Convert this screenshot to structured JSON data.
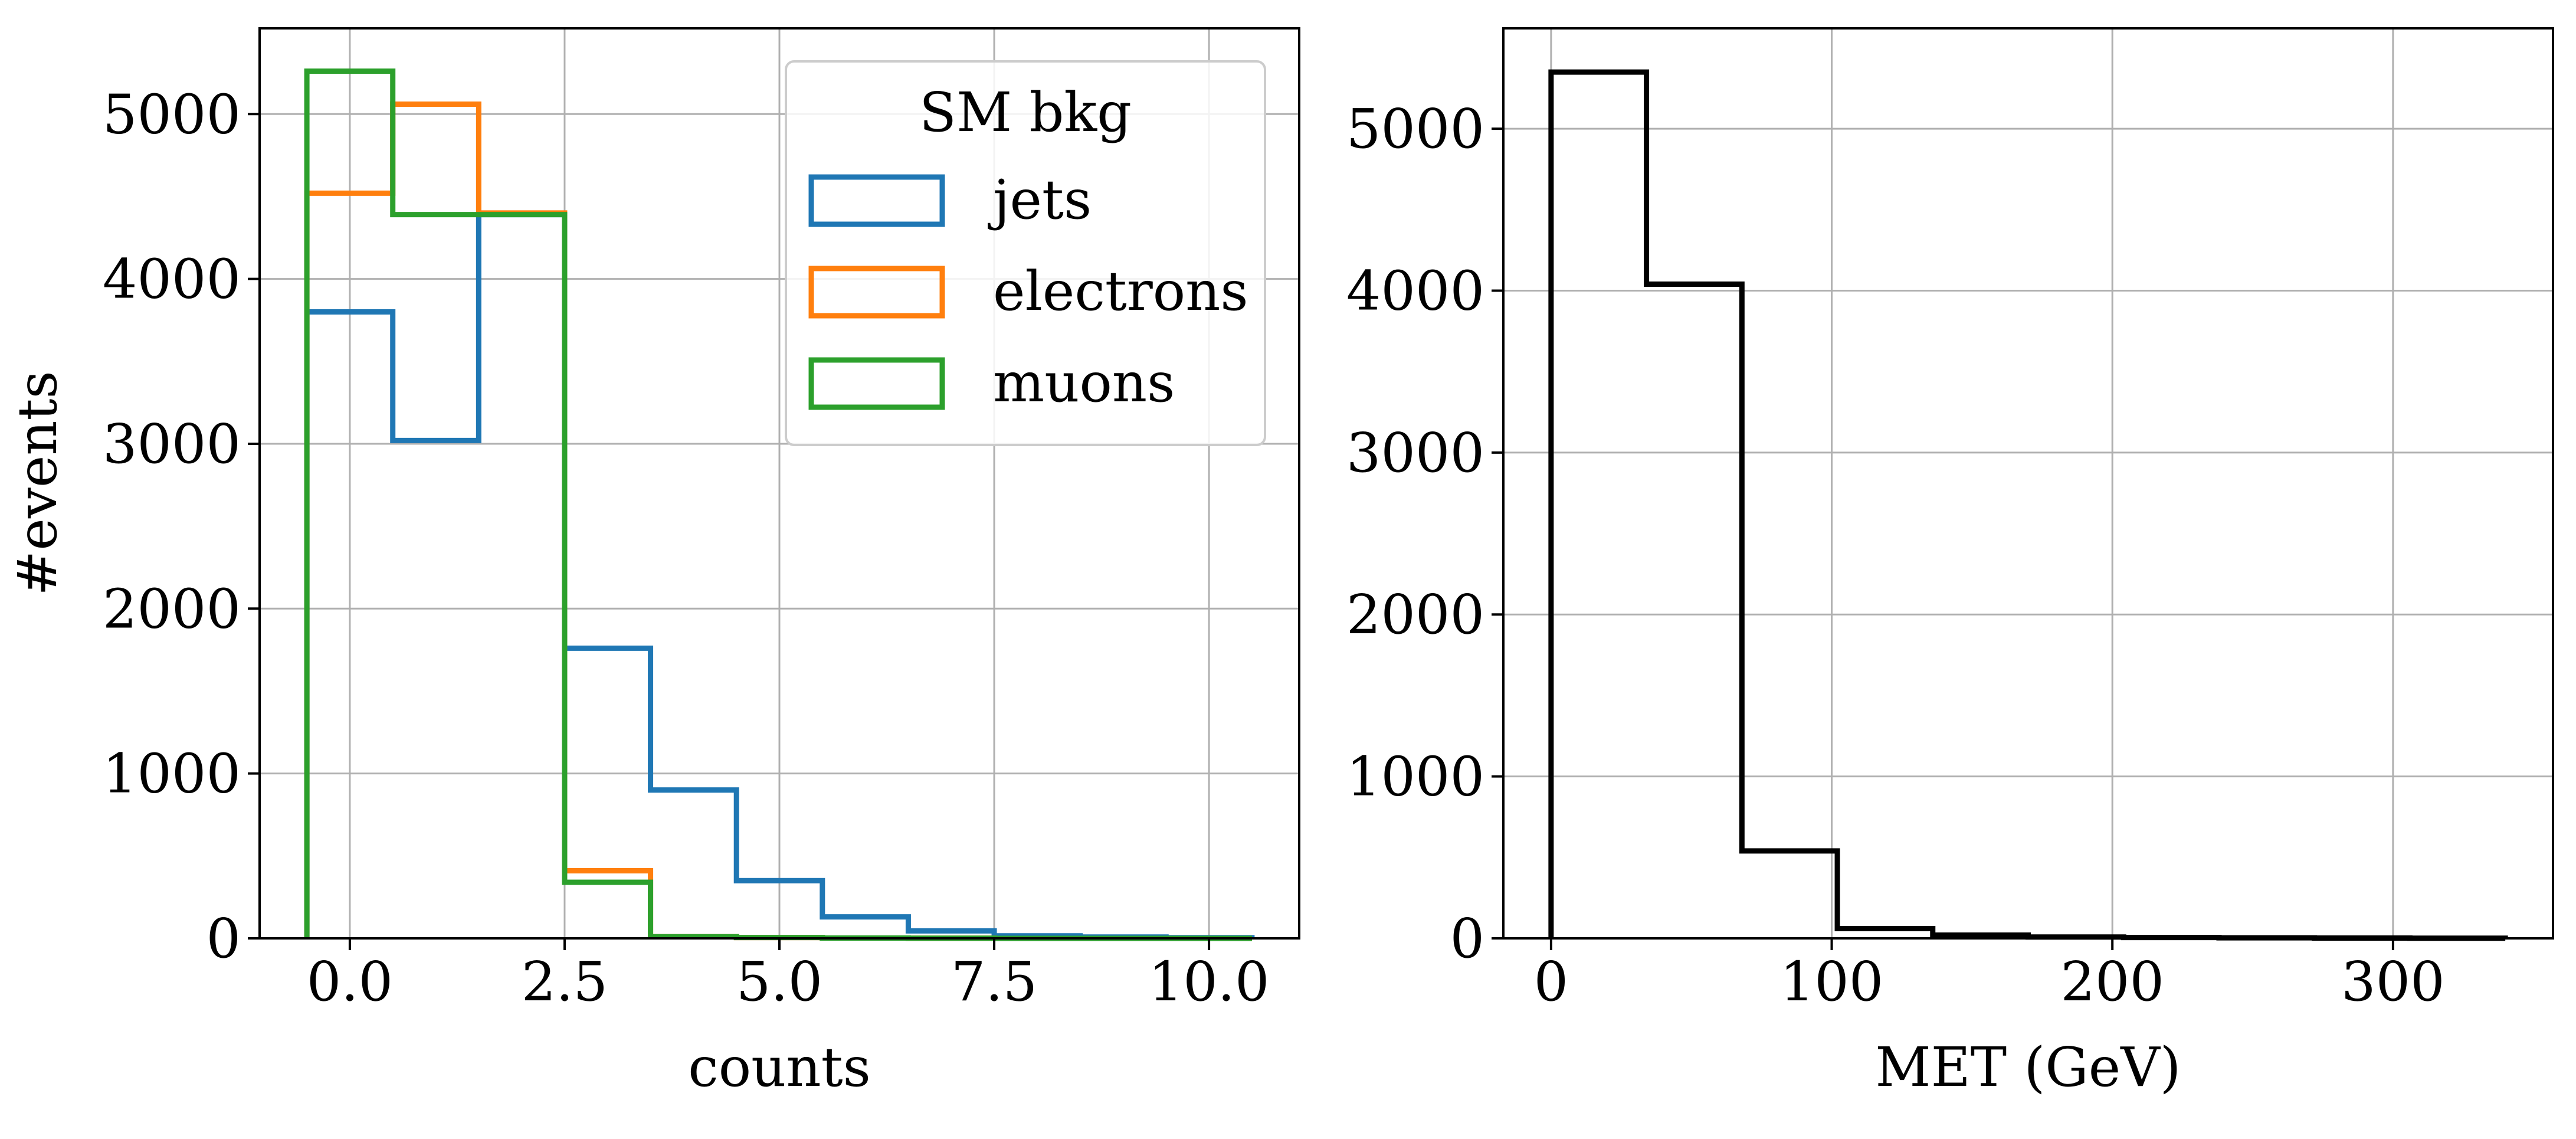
{
  "chart_data": [
    {
      "type": "histogram-step",
      "panel": "left",
      "xlabel": "counts",
      "ylabel": "#events",
      "xlim": [
        -1.05,
        11.05
      ],
      "ylim": [
        0,
        5520
      ],
      "xticks": [
        0.0,
        2.5,
        5.0,
        7.5,
        10.0
      ],
      "xtick_labels": [
        "0.0",
        "2.5",
        "5.0",
        "7.5",
        "10.0"
      ],
      "yticks": [
        0,
        1000,
        2000,
        3000,
        4000,
        5000
      ],
      "ytick_labels": [
        "0",
        "1000",
        "2000",
        "3000",
        "4000",
        "5000"
      ],
      "grid": true,
      "legend": {
        "title": "SM bkg",
        "placement": "top-right"
      },
      "bin_edges": [
        -0.5,
        0.5,
        1.5,
        2.5,
        3.5,
        4.5,
        5.5,
        6.5,
        7.5,
        8.5,
        9.5,
        10.5
      ],
      "series": [
        {
          "name": "jets",
          "color": "#1f77b4",
          "values": [
            3800,
            3020,
            4390,
            1760,
            900,
            350,
            130,
            45,
            15,
            8,
            4
          ]
        },
        {
          "name": "electrons",
          "color": "#ff7f0e",
          "values": [
            4520,
            5060,
            4400,
            410,
            10,
            5,
            2,
            1,
            0,
            0,
            0
          ]
        },
        {
          "name": "muons",
          "color": "#2ca02c",
          "values": [
            5260,
            4390,
            4390,
            340,
            10,
            5,
            2,
            1,
            0,
            0,
            0
          ]
        }
      ]
    },
    {
      "type": "histogram-step",
      "panel": "right",
      "xlabel": "MET (GeV)",
      "ylabel": "",
      "xlim": [
        -17,
        357
      ],
      "ylim": [
        0,
        5620
      ],
      "xticks": [
        0,
        100,
        200,
        300
      ],
      "xtick_labels": [
        "0",
        "100",
        "200",
        "300"
      ],
      "yticks": [
        0,
        1000,
        2000,
        3000,
        4000,
        5000
      ],
      "ytick_labels": [
        "0",
        "1000",
        "2000",
        "3000",
        "4000",
        "5000"
      ],
      "grid": true,
      "bin_edges": [
        0,
        34,
        68,
        102,
        136,
        170,
        204,
        238,
        272,
        306,
        340
      ],
      "series": [
        {
          "name": "MET",
          "color": "#000000",
          "values": [
            5350,
            4040,
            540,
            60,
            20,
            8,
            5,
            3,
            2,
            1
          ]
        }
      ]
    }
  ]
}
